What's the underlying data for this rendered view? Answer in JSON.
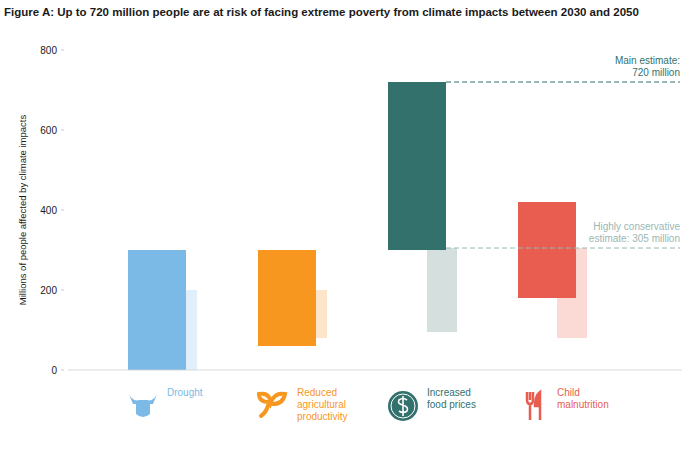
{
  "chart_data": {
    "type": "floating_bar",
    "title": "Figure A: Up to 720 million people are at risk of facing extreme poverty from climate impacts between 2030 and 2050",
    "y_label": "Millions of people affected by climate impacts",
    "categories": [
      "Drought",
      "Reduced agricultural productivity",
      "Increased food prices",
      "Child malnutrition"
    ],
    "series": [
      {
        "colors": [
          "#7bb9e6",
          "#f7971f",
          "#32716c",
          "#e85d4f"
        ],
        "values": [
          [
            0,
            300
          ],
          [
            60,
            300
          ],
          [
            300,
            720
          ],
          [
            180,
            420
          ]
        ]
      },
      {
        "colors": [
          "#e0eff9",
          "#fde5c9",
          "#d5e0de",
          "#fbd9d4"
        ],
        "values": [
          [
            0,
            200
          ],
          [
            80,
            200
          ],
          [
            95,
            305
          ],
          [
            80,
            305
          ]
        ]
      }
    ],
    "annotations": [
      {
        "lines": [
          "Main estimate:",
          "720 million"
        ],
        "y": 720,
        "color": "#32716c"
      },
      {
        "lines": [
          "Highly conservative",
          "estimate: 305 million"
        ],
        "y": 305,
        "color": "#9ab7b4"
      }
    ],
    "ylim": [
      0,
      800
    ],
    "yticks": [
      0,
      200,
      400,
      600,
      800
    ],
    "grid": false
  }
}
